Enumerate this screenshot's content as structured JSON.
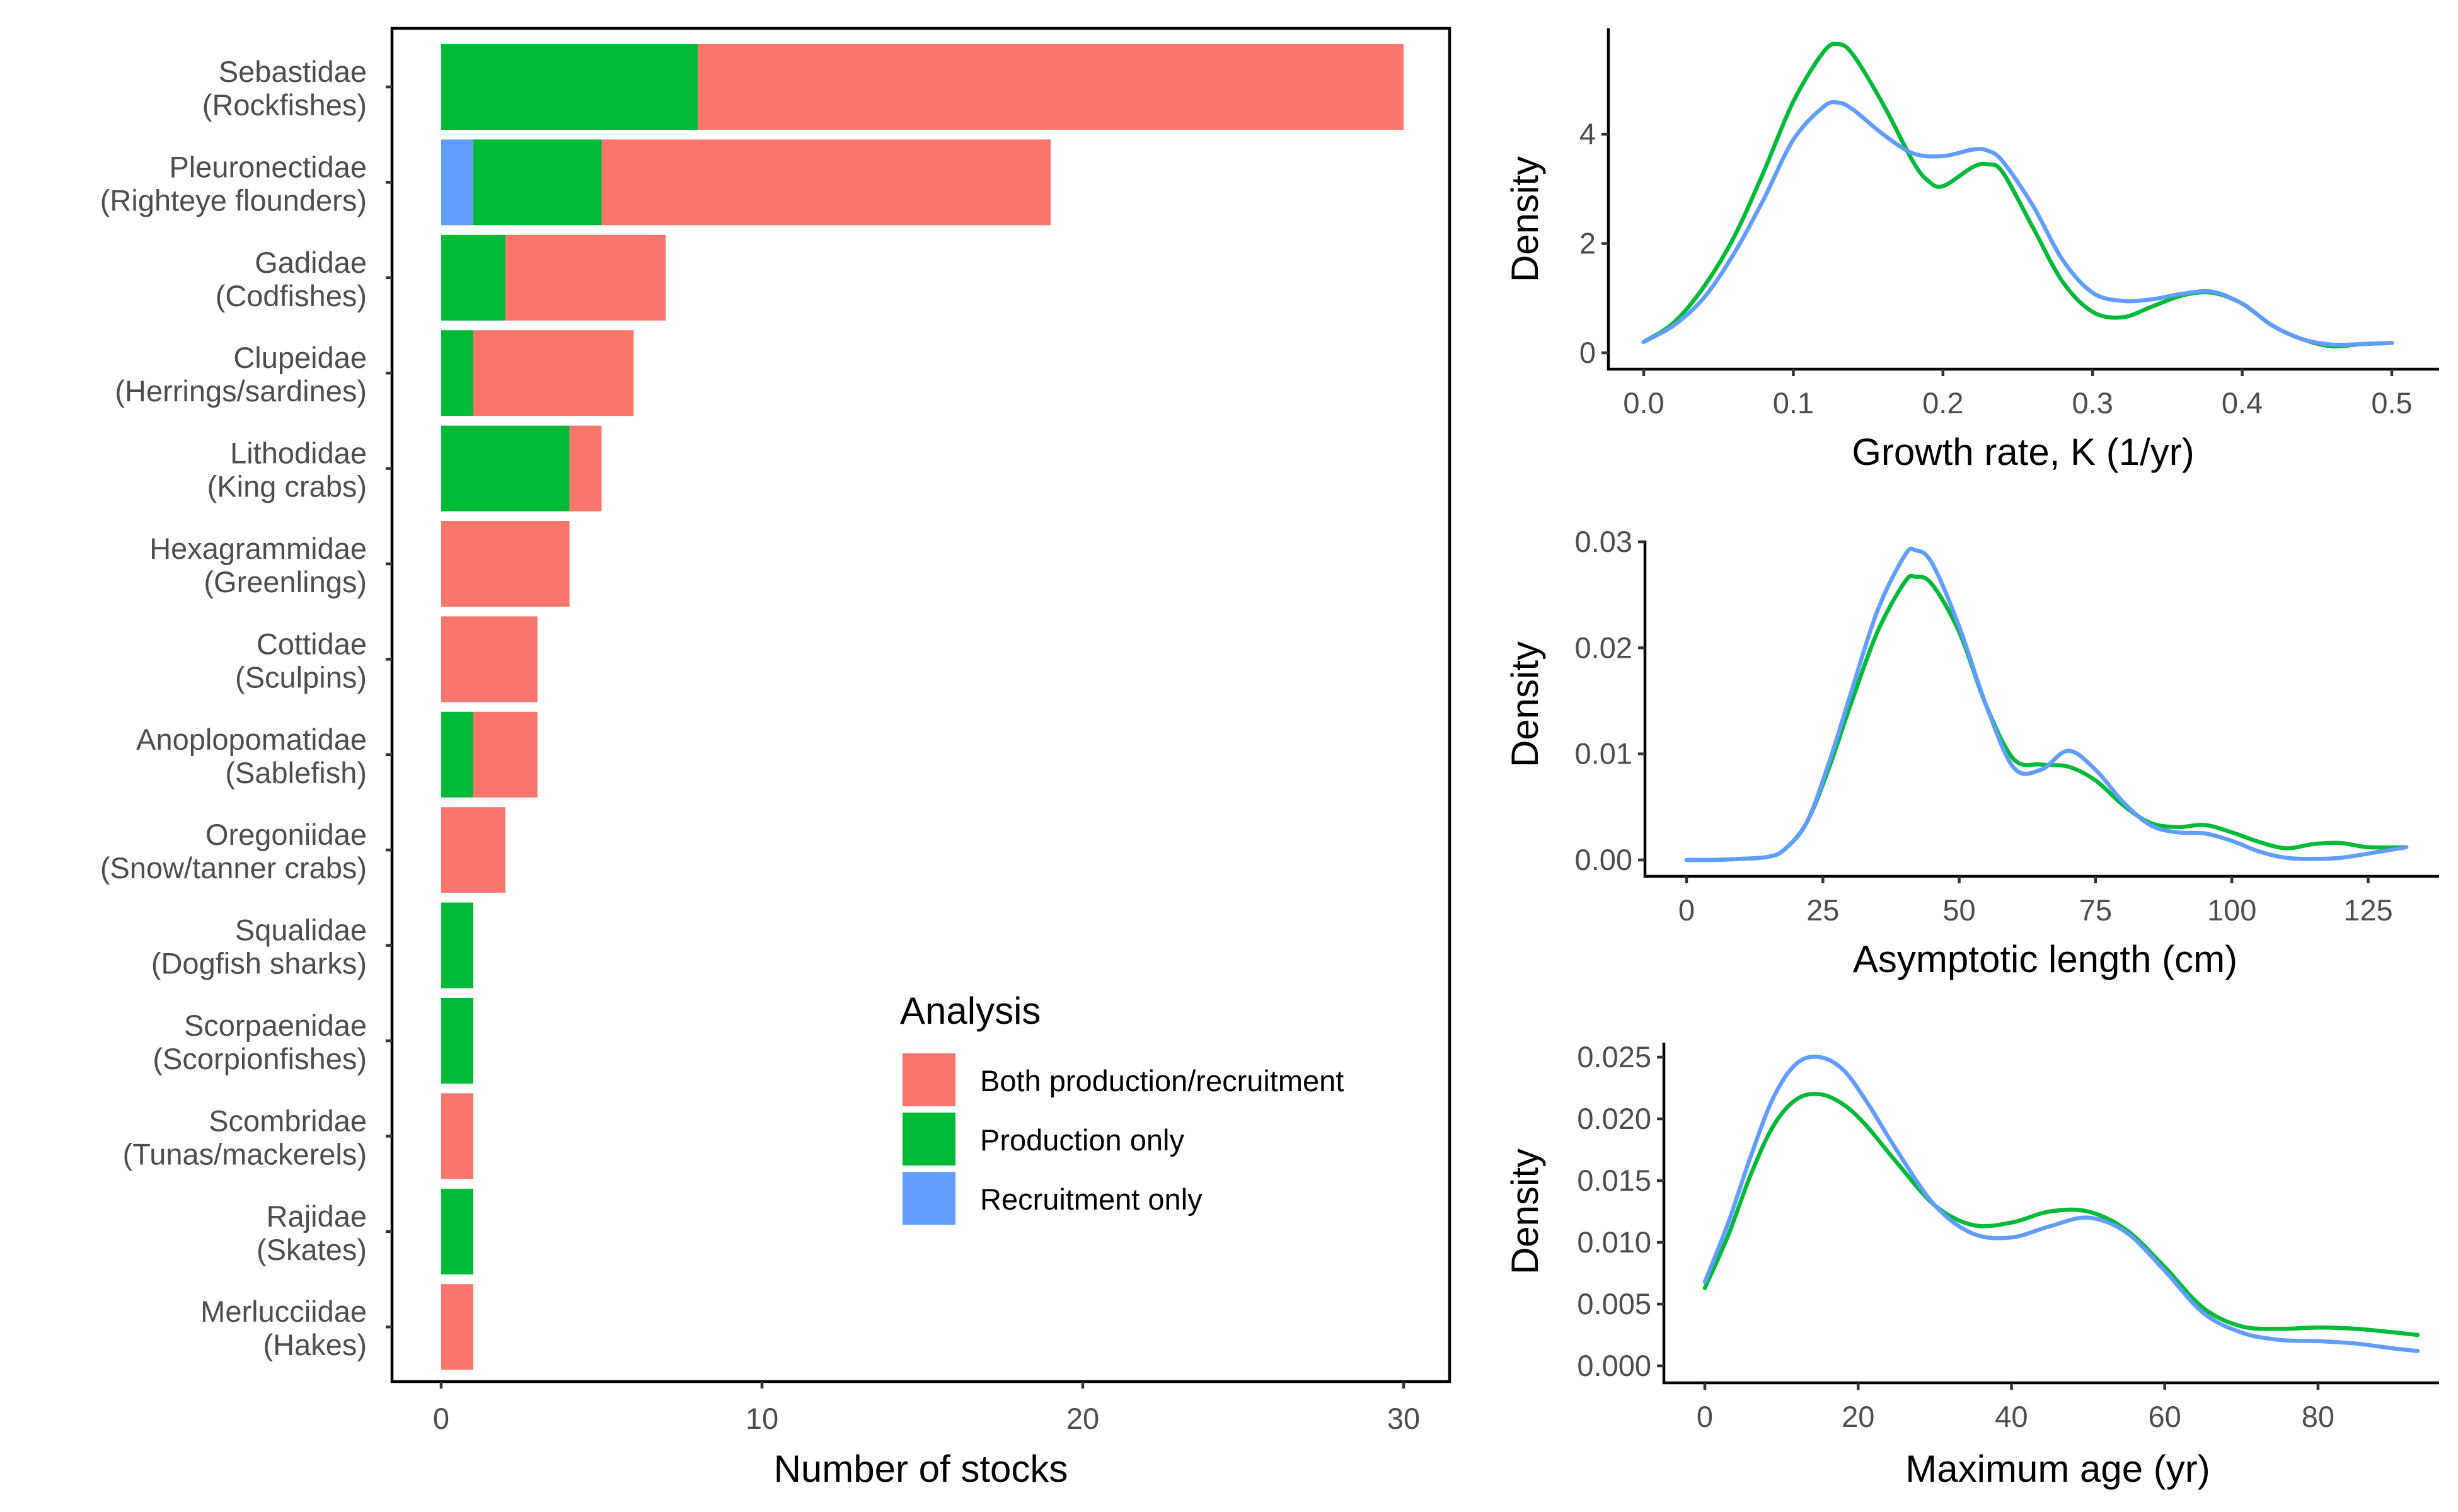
{
  "colors": {
    "both": "#F8766D",
    "production": "#00BA38",
    "recruitment": "#619CFF",
    "axis": "#000000",
    "tick_text": "#4D4D4D"
  },
  "chart_data": [
    {
      "id": "stocks",
      "type": "bar",
      "orientation": "horizontal",
      "stacked": true,
      "xlabel": "Number of stocks",
      "ylabel": "",
      "xlim": [
        0,
        30
      ],
      "xticks": [
        "0",
        "10",
        "20",
        "30"
      ],
      "categories": [
        [
          "Sebastidae",
          "(Rockfishes)"
        ],
        [
          "Pleuronectidae",
          "(Righteye flounders)"
        ],
        [
          "Gadidae",
          "(Codfishes)"
        ],
        [
          "Clupeidae",
          "(Herrings/sardines)"
        ],
        [
          "Lithodidae",
          "(King crabs)"
        ],
        [
          "Hexagrammidae",
          "(Greenlings)"
        ],
        [
          "Cottidae",
          "(Sculpins)"
        ],
        [
          "Anoplopomatidae",
          "(Sablefish)"
        ],
        [
          "Oregoniidae",
          "(Snow/tanner crabs)"
        ],
        [
          "Squalidae",
          "(Dogfish sharks)"
        ],
        [
          "Scorpaenidae",
          "(Scorpionfishes)"
        ],
        [
          "Scombridae",
          "(Tunas/mackerels)"
        ],
        [
          "Rajidae",
          "(Skates)"
        ],
        [
          "Merlucciidae",
          "(Hakes)"
        ]
      ],
      "series": [
        {
          "name": "Recruitment only",
          "color_key": "recruitment",
          "values": [
            0,
            1,
            0,
            0,
            0,
            0,
            0,
            0,
            0,
            0,
            0,
            0,
            0,
            0
          ]
        },
        {
          "name": "Production only",
          "color_key": "production",
          "values": [
            8,
            4,
            2,
            1,
            4,
            0,
            0,
            1,
            0,
            1,
            1,
            0,
            1,
            0
          ]
        },
        {
          "name": "Both production/recruitment",
          "color_key": "both",
          "values": [
            22,
            14,
            5,
            5,
            1,
            4,
            3,
            2,
            2,
            0,
            0,
            1,
            0,
            1
          ]
        }
      ],
      "legend": {
        "title": "Analysis",
        "position": "bottom-right",
        "items": [
          {
            "label": "Both production/recruitment",
            "color_key": "both"
          },
          {
            "label": "Production only",
            "color_key": "production"
          },
          {
            "label": "Recruitment only",
            "color_key": "recruitment"
          }
        ]
      }
    },
    {
      "id": "growth",
      "type": "line",
      "xlabel": "Growth rate, K (1/yr)",
      "ylabel": "Density",
      "xlim": [
        0,
        0.5
      ],
      "ylim": [
        0,
        5.65
      ],
      "xticks": [
        "0.0",
        "0.1",
        "0.2",
        "0.3",
        "0.4",
        "0.5"
      ],
      "yticks": [
        "0",
        "2",
        "4"
      ],
      "series": [
        {
          "color_key": "production",
          "x": [
            0,
            0.02,
            0.04,
            0.06,
            0.08,
            0.1,
            0.12,
            0.13,
            0.14,
            0.16,
            0.18,
            0.19,
            0.2,
            0.22,
            0.23,
            0.24,
            0.26,
            0.28,
            0.3,
            0.32,
            0.34,
            0.36,
            0.38,
            0.4,
            0.42,
            0.44,
            0.46,
            0.48,
            0.5
          ],
          "y": [
            0.2,
            0.55,
            1.2,
            2.1,
            3.3,
            4.6,
            5.5,
            5.65,
            5.45,
            4.55,
            3.5,
            3.15,
            3.05,
            3.4,
            3.45,
            3.3,
            2.3,
            1.3,
            0.75,
            0.65,
            0.85,
            1.05,
            1.1,
            0.9,
            0.5,
            0.25,
            0.12,
            0.16,
            0.18
          ]
        },
        {
          "color_key": "recruitment",
          "x": [
            0,
            0.02,
            0.04,
            0.06,
            0.08,
            0.1,
            0.12,
            0.13,
            0.14,
            0.16,
            0.18,
            0.2,
            0.22,
            0.23,
            0.24,
            0.26,
            0.28,
            0.3,
            0.32,
            0.34,
            0.36,
            0.38,
            0.4,
            0.42,
            0.44,
            0.46,
            0.48,
            0.5
          ],
          "y": [
            0.2,
            0.5,
            1.0,
            1.8,
            2.8,
            3.9,
            4.5,
            4.58,
            4.45,
            4.0,
            3.65,
            3.6,
            3.72,
            3.7,
            3.5,
            2.7,
            1.7,
            1.1,
            0.95,
            0.98,
            1.08,
            1.12,
            0.9,
            0.5,
            0.25,
            0.15,
            0.16,
            0.18
          ]
        }
      ]
    },
    {
      "id": "length",
      "type": "line",
      "xlabel": "Asymptotic length (cm)",
      "ylabel": "Density",
      "xlim": [
        0,
        132
      ],
      "ylim": [
        0,
        0.03
      ],
      "xticks": [
        "0",
        "25",
        "50",
        "75",
        "100",
        "125"
      ],
      "yticks": [
        "0.00",
        "0.01",
        "0.02",
        "0.03"
      ],
      "series": [
        {
          "color_key": "production",
          "x": [
            0,
            5,
            10,
            15,
            18,
            22,
            26,
            30,
            35,
            40,
            42,
            45,
            50,
            55,
            60,
            65,
            70,
            75,
            80,
            85,
            90,
            95,
            100,
            105,
            110,
            115,
            120,
            125,
            132
          ],
          "y": [
            0.0,
            0.0,
            0.0001,
            0.0003,
            0.001,
            0.0035,
            0.0085,
            0.0145,
            0.0215,
            0.0262,
            0.0267,
            0.026,
            0.0215,
            0.0145,
            0.0095,
            0.009,
            0.0088,
            0.0075,
            0.0052,
            0.0035,
            0.0031,
            0.0033,
            0.0026,
            0.0017,
            0.0011,
            0.0015,
            0.0016,
            0.0012,
            0.0012
          ]
        },
        {
          "color_key": "recruitment",
          "x": [
            0,
            5,
            10,
            15,
            18,
            22,
            26,
            30,
            35,
            40,
            42,
            45,
            50,
            55,
            60,
            65,
            70,
            75,
            80,
            85,
            90,
            95,
            100,
            105,
            110,
            115,
            120,
            125,
            132
          ],
          "y": [
            0.0,
            0.0,
            0.0001,
            0.0003,
            0.001,
            0.0035,
            0.009,
            0.0155,
            0.0235,
            0.0287,
            0.0292,
            0.028,
            0.022,
            0.0145,
            0.0087,
            0.0085,
            0.0103,
            0.0085,
            0.0055,
            0.0033,
            0.0026,
            0.0025,
            0.0018,
            0.0008,
            0.0002,
            0.0001,
            0.0002,
            0.0006,
            0.0012
          ]
        }
      ]
    },
    {
      "id": "age",
      "type": "line",
      "xlabel": "Maximum age (yr)",
      "ylabel": "Density",
      "xlim": [
        0,
        93
      ],
      "ylim": [
        0,
        0.025
      ],
      "xticks": [
        "0",
        "20",
        "40",
        "60",
        "80"
      ],
      "yticks": [
        "0.000",
        "0.005",
        "0.010",
        "0.015",
        "0.020",
        "0.025"
      ],
      "series": [
        {
          "color_key": "production",
          "x": [
            0,
            3,
            6,
            9,
            12,
            15,
            18,
            21,
            25,
            30,
            35,
            40,
            45,
            50,
            55,
            60,
            65,
            70,
            75,
            80,
            85,
            90,
            93
          ],
          "y": [
            0.0063,
            0.0105,
            0.0155,
            0.0195,
            0.0216,
            0.022,
            0.0212,
            0.0195,
            0.0165,
            0.013,
            0.0114,
            0.0116,
            0.0125,
            0.0125,
            0.011,
            0.008,
            0.0047,
            0.0032,
            0.003,
            0.0031,
            0.003,
            0.0027,
            0.0025
          ]
        },
        {
          "color_key": "recruitment",
          "x": [
            0,
            3,
            6,
            9,
            12,
            15,
            18,
            21,
            25,
            30,
            35,
            40,
            45,
            50,
            55,
            60,
            65,
            70,
            75,
            80,
            85,
            90,
            93
          ],
          "y": [
            0.0068,
            0.0115,
            0.017,
            0.0218,
            0.0245,
            0.025,
            0.024,
            0.0215,
            0.0175,
            0.013,
            0.0107,
            0.0104,
            0.0113,
            0.012,
            0.0108,
            0.0077,
            0.0043,
            0.0027,
            0.0021,
            0.002,
            0.0018,
            0.0014,
            0.0012
          ]
        }
      ]
    }
  ]
}
